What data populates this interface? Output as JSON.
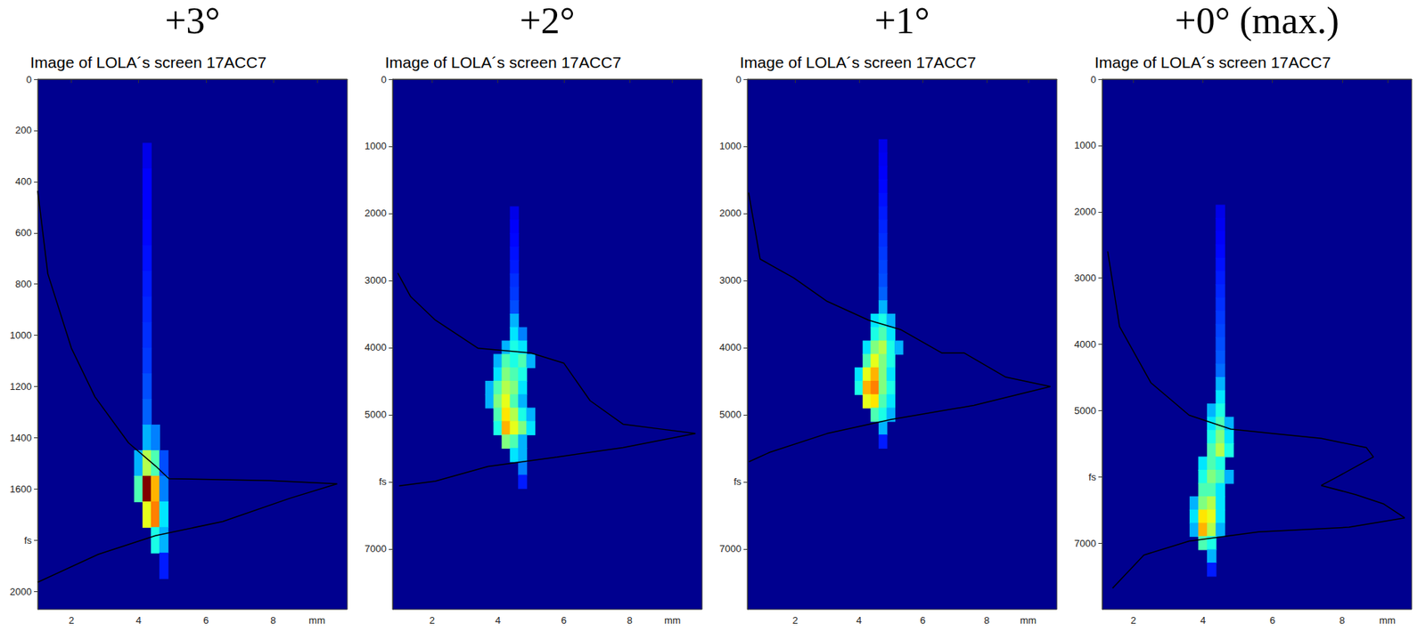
{
  "chart_data": [
    {
      "type": "heatmap",
      "title": "+3°",
      "subtitle": "Image of LOLA´s screen 17ACC7",
      "xlim": [
        1,
        10.2
      ],
      "xticks": [
        2,
        4,
        6,
        8,
        {
          "value": 9.3,
          "label": "mm"
        }
      ],
      "ylim": [
        0,
        2070
      ],
      "yticks": [
        0,
        200,
        400,
        600,
        800,
        1000,
        1200,
        1400,
        1600,
        {
          "value": 1800,
          "label": "fs"
        },
        2000
      ],
      "grid": false,
      "cells": [
        [
          4.25,
          300,
          0.1
        ],
        [
          4.25,
          400,
          0.12
        ],
        [
          4.25,
          500,
          0.12
        ],
        [
          4.25,
          600,
          0.13
        ],
        [
          4.25,
          700,
          0.14
        ],
        [
          4.25,
          800,
          0.15
        ],
        [
          4.25,
          900,
          0.16
        ],
        [
          4.25,
          1000,
          0.17
        ],
        [
          4.25,
          1100,
          0.18
        ],
        [
          4.25,
          1200,
          0.2
        ],
        [
          4.25,
          1300,
          0.22
        ],
        [
          4.25,
          1400,
          0.3
        ],
        [
          4.5,
          1400,
          0.25
        ],
        [
          4.0,
          1500,
          0.3
        ],
        [
          4.25,
          1500,
          0.55
        ],
        [
          4.5,
          1500,
          0.45
        ],
        [
          4.75,
          1500,
          0.2
        ],
        [
          4.0,
          1600,
          0.45
        ],
        [
          4.25,
          1600,
          1.0
        ],
        [
          4.5,
          1600,
          0.7
        ],
        [
          4.75,
          1600,
          0.25
        ],
        [
          4.25,
          1700,
          0.6
        ],
        [
          4.5,
          1700,
          0.75
        ],
        [
          4.75,
          1700,
          0.35
        ],
        [
          4.5,
          1800,
          0.4
        ],
        [
          4.75,
          1800,
          0.3
        ],
        [
          4.75,
          1900,
          0.15
        ]
      ],
      "profile": {
        "color": "#000000",
        "x": [
          1.0,
          1.3,
          2.0,
          2.7,
          3.7,
          4.5,
          4.9,
          7.9,
          9.9,
          8.5,
          6.5,
          4.5,
          2.8,
          1.0
        ],
        "y": [
          436,
          760,
          1050,
          1240,
          1420,
          1510,
          1560,
          1567,
          1580,
          1636,
          1727,
          1782,
          1855,
          1964
        ]
      }
    },
    {
      "type": "heatmap",
      "title": "+2°",
      "subtitle": "Image of LOLA´s screen 17ACC7",
      "xlim": [
        0.8,
        10.2
      ],
      "xticks": [
        2,
        4,
        6,
        8,
        {
          "value": 9.3,
          "label": "mm"
        }
      ],
      "ylim": [
        0,
        7900
      ],
      "yticks": [
        0,
        1000,
        2000,
        3000,
        4000,
        5000,
        {
          "value": 6000,
          "label": "fs"
        },
        7000
      ],
      "grid": false,
      "cells": [
        [
          4.5,
          2000,
          0.1
        ],
        [
          4.5,
          2200,
          0.12
        ],
        [
          4.5,
          2400,
          0.13
        ],
        [
          4.5,
          2600,
          0.14
        ],
        [
          4.5,
          2800,
          0.15
        ],
        [
          4.5,
          3000,
          0.17
        ],
        [
          4.5,
          3200,
          0.18
        ],
        [
          4.5,
          3400,
          0.2
        ],
        [
          4.5,
          3600,
          0.3
        ],
        [
          4.5,
          3800,
          0.35
        ],
        [
          4.75,
          3800,
          0.25
        ],
        [
          4.25,
          4000,
          0.3
        ],
        [
          4.5,
          4000,
          0.4
        ],
        [
          4.75,
          4000,
          0.35
        ],
        [
          4.0,
          4200,
          0.3
        ],
        [
          4.25,
          4200,
          0.45
        ],
        [
          4.5,
          4200,
          0.4
        ],
        [
          4.75,
          4200,
          0.45
        ],
        [
          5.0,
          4200,
          0.3
        ],
        [
          4.0,
          4400,
          0.35
        ],
        [
          4.25,
          4400,
          0.5
        ],
        [
          4.5,
          4400,
          0.45
        ],
        [
          4.75,
          4400,
          0.4
        ],
        [
          3.75,
          4600,
          0.3
        ],
        [
          4.0,
          4600,
          0.45
        ],
        [
          4.25,
          4600,
          0.55
        ],
        [
          4.5,
          4600,
          0.5
        ],
        [
          4.75,
          4600,
          0.35
        ],
        [
          3.75,
          4800,
          0.3
        ],
        [
          4.0,
          4800,
          0.5
        ],
        [
          4.25,
          4800,
          0.6
        ],
        [
          4.5,
          4800,
          0.45
        ],
        [
          4.75,
          4800,
          0.3
        ],
        [
          4.0,
          5000,
          0.45
        ],
        [
          4.25,
          5000,
          0.65
        ],
        [
          4.5,
          5000,
          0.55
        ],
        [
          4.75,
          5000,
          0.4
        ],
        [
          5.0,
          5000,
          0.3
        ],
        [
          4.0,
          5200,
          0.4
        ],
        [
          4.25,
          5200,
          0.7
        ],
        [
          4.5,
          5200,
          0.6
        ],
        [
          4.75,
          5200,
          0.5
        ],
        [
          5.0,
          5200,
          0.35
        ],
        [
          4.25,
          5400,
          0.5
        ],
        [
          4.5,
          5400,
          0.45
        ],
        [
          4.75,
          5400,
          0.3
        ],
        [
          4.5,
          5600,
          0.35
        ],
        [
          4.75,
          5600,
          0.3
        ],
        [
          4.75,
          5800,
          0.25
        ],
        [
          4.75,
          6000,
          0.15
        ]
      ],
      "profile": {
        "color": "#000000",
        "x": [
          0.96,
          1.35,
          2.1,
          3.4,
          5.0,
          6.0,
          6.8,
          7.8,
          8.9,
          10.0,
          7.8,
          5.8,
          3.7,
          2.1,
          1.0
        ],
        "y": [
          2890,
          3240,
          3590,
          4010,
          4080,
          4230,
          4790,
          5140,
          5210,
          5280,
          5490,
          5630,
          5770,
          5990,
          6060
        ]
      }
    },
    {
      "type": "heatmap",
      "title": "+1°",
      "subtitle": "Image of LOLA´s screen 17ACC7",
      "xlim": [
        0.5,
        10.2
      ],
      "xticks": [
        2,
        4,
        6,
        8,
        {
          "value": 9.3,
          "label": "mm"
        }
      ],
      "ylim": [
        0,
        7900
      ],
      "yticks": [
        0,
        1000,
        2000,
        3000,
        4000,
        5000,
        {
          "value": 6000,
          "label": "fs"
        },
        7000
      ],
      "grid": false,
      "cells": [
        [
          4.75,
          1000,
          0.1
        ],
        [
          4.75,
          1200,
          0.11
        ],
        [
          4.75,
          1400,
          0.12
        ],
        [
          4.75,
          1600,
          0.13
        ],
        [
          4.75,
          1800,
          0.14
        ],
        [
          4.75,
          2000,
          0.15
        ],
        [
          4.75,
          2200,
          0.16
        ],
        [
          4.75,
          2400,
          0.17
        ],
        [
          4.75,
          2600,
          0.18
        ],
        [
          4.75,
          2800,
          0.19
        ],
        [
          4.75,
          3000,
          0.2
        ],
        [
          4.75,
          3200,
          0.22
        ],
        [
          4.75,
          3400,
          0.3
        ],
        [
          4.5,
          3600,
          0.35
        ],
        [
          4.75,
          3600,
          0.4
        ],
        [
          5.0,
          3600,
          0.3
        ],
        [
          4.5,
          3800,
          0.4
        ],
        [
          4.75,
          3800,
          0.45
        ],
        [
          5.0,
          3800,
          0.35
        ],
        [
          4.25,
          4000,
          0.35
        ],
        [
          4.5,
          4000,
          0.5
        ],
        [
          4.75,
          4000,
          0.55
        ],
        [
          5.0,
          4000,
          0.4
        ],
        [
          5.25,
          4000,
          0.3
        ],
        [
          4.25,
          4200,
          0.45
        ],
        [
          4.5,
          4200,
          0.6
        ],
        [
          4.75,
          4200,
          0.5
        ],
        [
          5.0,
          4200,
          0.4
        ],
        [
          4.0,
          4400,
          0.35
        ],
        [
          4.25,
          4400,
          0.6
        ],
        [
          4.5,
          4400,
          0.7
        ],
        [
          4.75,
          4400,
          0.5
        ],
        [
          5.0,
          4400,
          0.35
        ],
        [
          4.0,
          4600,
          0.4
        ],
        [
          4.25,
          4600,
          0.7
        ],
        [
          4.5,
          4600,
          0.75
        ],
        [
          4.75,
          4600,
          0.5
        ],
        [
          5.0,
          4600,
          0.4
        ],
        [
          4.25,
          4800,
          0.6
        ],
        [
          4.5,
          4800,
          0.65
        ],
        [
          4.75,
          4800,
          0.45
        ],
        [
          5.0,
          4800,
          0.35
        ],
        [
          4.5,
          5000,
          0.45
        ],
        [
          4.75,
          5000,
          0.4
        ],
        [
          5.0,
          5000,
          0.3
        ],
        [
          4.75,
          5200,
          0.3
        ],
        [
          4.75,
          5400,
          0.15
        ]
      ],
      "profile": {
        "color": "#000000",
        "x": [
          0.54,
          0.9,
          1.95,
          3.0,
          4.3,
          5.3,
          6.6,
          7.3,
          8.6,
          10.0,
          7.6,
          5.0,
          3.0,
          1.2,
          0.55
        ],
        "y": [
          1690,
          2680,
          2960,
          3310,
          3590,
          3730,
          4080,
          4080,
          4440,
          4580,
          4860,
          5070,
          5280,
          5560,
          5700
        ]
      }
    },
    {
      "type": "heatmap",
      "title": "+0° (max.)",
      "subtitle": "Image of LOLA´s screen 17ACC7",
      "xlim": [
        1.1,
        10
      ],
      "xticks": [
        2,
        4,
        6,
        8,
        {
          "value": 9.3,
          "label": "mm"
        }
      ],
      "ylim": [
        0,
        8000
      ],
      "yticks": [
        0,
        1000,
        2000,
        3000,
        4000,
        5000,
        {
          "value": 6000,
          "label": "fs"
        },
        7000
      ],
      "grid": false,
      "cells": [
        [
          4.5,
          2000,
          0.1
        ],
        [
          4.5,
          2200,
          0.11
        ],
        [
          4.5,
          2400,
          0.12
        ],
        [
          4.5,
          2600,
          0.13
        ],
        [
          4.5,
          2800,
          0.14
        ],
        [
          4.5,
          3000,
          0.15
        ],
        [
          4.5,
          3200,
          0.16
        ],
        [
          4.5,
          3400,
          0.17
        ],
        [
          4.5,
          3600,
          0.18
        ],
        [
          4.5,
          3800,
          0.19
        ],
        [
          4.5,
          4000,
          0.2
        ],
        [
          4.5,
          4200,
          0.21
        ],
        [
          4.5,
          4400,
          0.23
        ],
        [
          4.5,
          4600,
          0.3
        ],
        [
          4.5,
          4800,
          0.35
        ],
        [
          4.25,
          5000,
          0.3
        ],
        [
          4.5,
          5000,
          0.4
        ],
        [
          4.25,
          5200,
          0.35
        ],
        [
          4.5,
          5200,
          0.45
        ],
        [
          4.75,
          5200,
          0.3
        ],
        [
          4.25,
          5400,
          0.4
        ],
        [
          4.5,
          5400,
          0.5
        ],
        [
          4.75,
          5400,
          0.35
        ],
        [
          4.25,
          5600,
          0.45
        ],
        [
          4.5,
          5600,
          0.55
        ],
        [
          4.75,
          5600,
          0.4
        ],
        [
          4.0,
          5800,
          0.35
        ],
        [
          4.25,
          5800,
          0.45
        ],
        [
          4.5,
          5800,
          0.4
        ],
        [
          4.0,
          6000,
          0.4
        ],
        [
          4.25,
          6000,
          0.5
        ],
        [
          4.5,
          6000,
          0.45
        ],
        [
          4.75,
          6000,
          0.3
        ],
        [
          4.0,
          6200,
          0.45
        ],
        [
          4.25,
          6200,
          0.45
        ],
        [
          4.5,
          6200,
          0.35
        ],
        [
          3.75,
          6400,
          0.3
        ],
        [
          4.0,
          6400,
          0.5
        ],
        [
          4.25,
          6400,
          0.55
        ],
        [
          4.5,
          6400,
          0.35
        ],
        [
          3.75,
          6600,
          0.35
        ],
        [
          4.0,
          6600,
          0.65
        ],
        [
          4.25,
          6600,
          0.6
        ],
        [
          4.5,
          6600,
          0.35
        ],
        [
          3.75,
          6800,
          0.3
        ],
        [
          4.0,
          6800,
          0.7
        ],
        [
          4.25,
          6800,
          0.55
        ],
        [
          4.5,
          6800,
          0.3
        ],
        [
          4.0,
          7000,
          0.45
        ],
        [
          4.25,
          7000,
          0.4
        ],
        [
          4.25,
          7200,
          0.3
        ],
        [
          4.25,
          7400,
          0.15
        ]
      ],
      "profile": {
        "color": "#000000",
        "x": [
          1.26,
          1.6,
          2.5,
          3.6,
          4.8,
          6.1,
          7.4,
          8.7,
          8.9,
          7.9,
          7.4,
          8.4,
          9.2,
          9.8,
          8.2,
          5.6,
          3.6,
          2.3,
          1.4
        ],
        "y": [
          2600,
          3730,
          4580,
          5070,
          5280,
          5350,
          5420,
          5560,
          5700,
          5990,
          6130,
          6270,
          6410,
          6620,
          6760,
          6830,
          6970,
          7180,
          7680
        ]
      }
    }
  ]
}
